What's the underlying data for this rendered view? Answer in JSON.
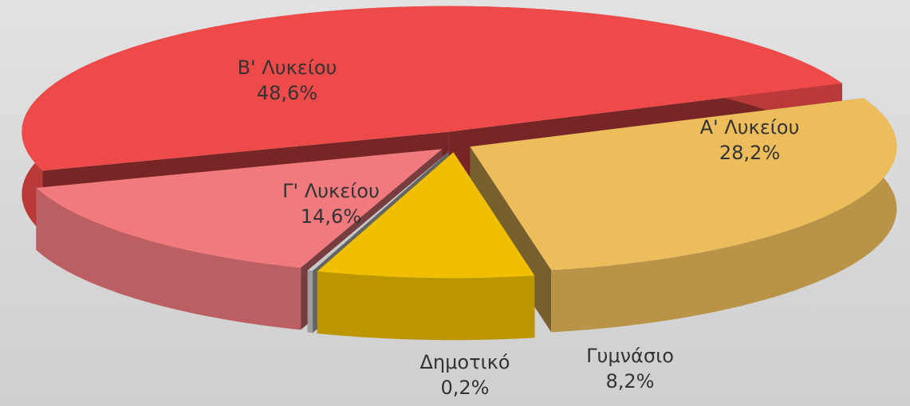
{
  "chart_data": {
    "type": "pie3d",
    "categories": [
      "Β' Λυκείου",
      "Α' Λυκείου",
      "Γυμνάσιο",
      "Δημοτικό",
      "Γ' Λυκείου"
    ],
    "values": [
      48.6,
      28.2,
      8.2,
      0.2,
      14.6
    ],
    "value_labels": [
      "48,6%",
      "28,2%",
      "8,2%",
      "0,2%",
      "14,6%"
    ],
    "colors": [
      "#ef4a4a",
      "#edbd5c",
      "#f0c000",
      "#c8c8c8",
      "#f07a7e"
    ]
  }
}
